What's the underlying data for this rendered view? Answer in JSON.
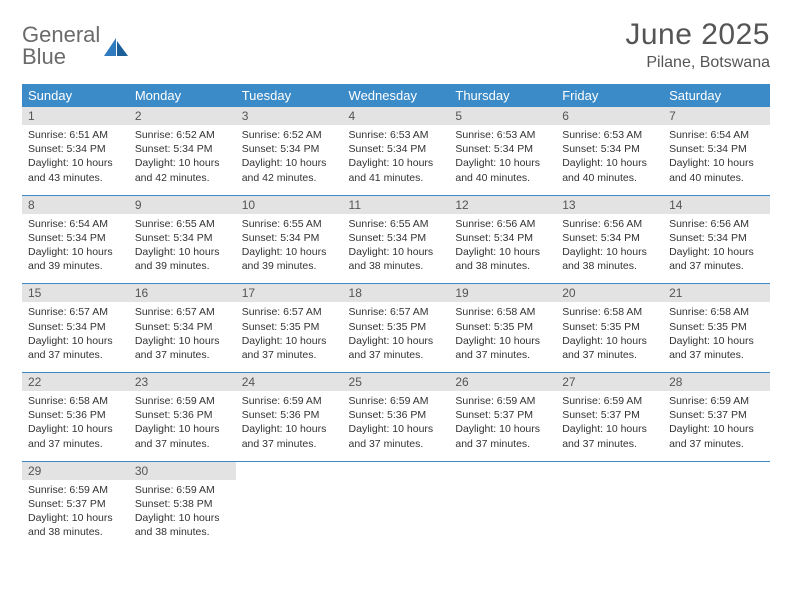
{
  "logo": {
    "line1": "General",
    "line2": "Blue"
  },
  "title": "June 2025",
  "subtitle": "Pilane, Botswana",
  "colors": {
    "header_bg": "#3b8bc8",
    "header_fg": "#ffffff",
    "daynum_bg": "#e3e3e3",
    "rule": "#3b8bc8",
    "text": "#333333",
    "logo_gray": "#6b6b6b",
    "logo_blue": "#2f7bbf"
  },
  "day_headers": [
    "Sunday",
    "Monday",
    "Tuesday",
    "Wednesday",
    "Thursday",
    "Friday",
    "Saturday"
  ],
  "weeks": [
    [
      {
        "n": "1",
        "sunrise": "6:51 AM",
        "sunset": "5:34 PM",
        "daylight": "10 hours and 43 minutes."
      },
      {
        "n": "2",
        "sunrise": "6:52 AM",
        "sunset": "5:34 PM",
        "daylight": "10 hours and 42 minutes."
      },
      {
        "n": "3",
        "sunrise": "6:52 AM",
        "sunset": "5:34 PM",
        "daylight": "10 hours and 42 minutes."
      },
      {
        "n": "4",
        "sunrise": "6:53 AM",
        "sunset": "5:34 PM",
        "daylight": "10 hours and 41 minutes."
      },
      {
        "n": "5",
        "sunrise": "6:53 AM",
        "sunset": "5:34 PM",
        "daylight": "10 hours and 40 minutes."
      },
      {
        "n": "6",
        "sunrise": "6:53 AM",
        "sunset": "5:34 PM",
        "daylight": "10 hours and 40 minutes."
      },
      {
        "n": "7",
        "sunrise": "6:54 AM",
        "sunset": "5:34 PM",
        "daylight": "10 hours and 40 minutes."
      }
    ],
    [
      {
        "n": "8",
        "sunrise": "6:54 AM",
        "sunset": "5:34 PM",
        "daylight": "10 hours and 39 minutes."
      },
      {
        "n": "9",
        "sunrise": "6:55 AM",
        "sunset": "5:34 PM",
        "daylight": "10 hours and 39 minutes."
      },
      {
        "n": "10",
        "sunrise": "6:55 AM",
        "sunset": "5:34 PM",
        "daylight": "10 hours and 39 minutes."
      },
      {
        "n": "11",
        "sunrise": "6:55 AM",
        "sunset": "5:34 PM",
        "daylight": "10 hours and 38 minutes."
      },
      {
        "n": "12",
        "sunrise": "6:56 AM",
        "sunset": "5:34 PM",
        "daylight": "10 hours and 38 minutes."
      },
      {
        "n": "13",
        "sunrise": "6:56 AM",
        "sunset": "5:34 PM",
        "daylight": "10 hours and 38 minutes."
      },
      {
        "n": "14",
        "sunrise": "6:56 AM",
        "sunset": "5:34 PM",
        "daylight": "10 hours and 37 minutes."
      }
    ],
    [
      {
        "n": "15",
        "sunrise": "6:57 AM",
        "sunset": "5:34 PM",
        "daylight": "10 hours and 37 minutes."
      },
      {
        "n": "16",
        "sunrise": "6:57 AM",
        "sunset": "5:34 PM",
        "daylight": "10 hours and 37 minutes."
      },
      {
        "n": "17",
        "sunrise": "6:57 AM",
        "sunset": "5:35 PM",
        "daylight": "10 hours and 37 minutes."
      },
      {
        "n": "18",
        "sunrise": "6:57 AM",
        "sunset": "5:35 PM",
        "daylight": "10 hours and 37 minutes."
      },
      {
        "n": "19",
        "sunrise": "6:58 AM",
        "sunset": "5:35 PM",
        "daylight": "10 hours and 37 minutes."
      },
      {
        "n": "20",
        "sunrise": "6:58 AM",
        "sunset": "5:35 PM",
        "daylight": "10 hours and 37 minutes."
      },
      {
        "n": "21",
        "sunrise": "6:58 AM",
        "sunset": "5:35 PM",
        "daylight": "10 hours and 37 minutes."
      }
    ],
    [
      {
        "n": "22",
        "sunrise": "6:58 AM",
        "sunset": "5:36 PM",
        "daylight": "10 hours and 37 minutes."
      },
      {
        "n": "23",
        "sunrise": "6:59 AM",
        "sunset": "5:36 PM",
        "daylight": "10 hours and 37 minutes."
      },
      {
        "n": "24",
        "sunrise": "6:59 AM",
        "sunset": "5:36 PM",
        "daylight": "10 hours and 37 minutes."
      },
      {
        "n": "25",
        "sunrise": "6:59 AM",
        "sunset": "5:36 PM",
        "daylight": "10 hours and 37 minutes."
      },
      {
        "n": "26",
        "sunrise": "6:59 AM",
        "sunset": "5:37 PM",
        "daylight": "10 hours and 37 minutes."
      },
      {
        "n": "27",
        "sunrise": "6:59 AM",
        "sunset": "5:37 PM",
        "daylight": "10 hours and 37 minutes."
      },
      {
        "n": "28",
        "sunrise": "6:59 AM",
        "sunset": "5:37 PM",
        "daylight": "10 hours and 37 minutes."
      }
    ],
    [
      {
        "n": "29",
        "sunrise": "6:59 AM",
        "sunset": "5:37 PM",
        "daylight": "10 hours and 38 minutes."
      },
      {
        "n": "30",
        "sunrise": "6:59 AM",
        "sunset": "5:38 PM",
        "daylight": "10 hours and 38 minutes."
      },
      null,
      null,
      null,
      null,
      null
    ]
  ],
  "labels": {
    "sunrise": "Sunrise: ",
    "sunset": "Sunset: ",
    "daylight": "Daylight: "
  }
}
